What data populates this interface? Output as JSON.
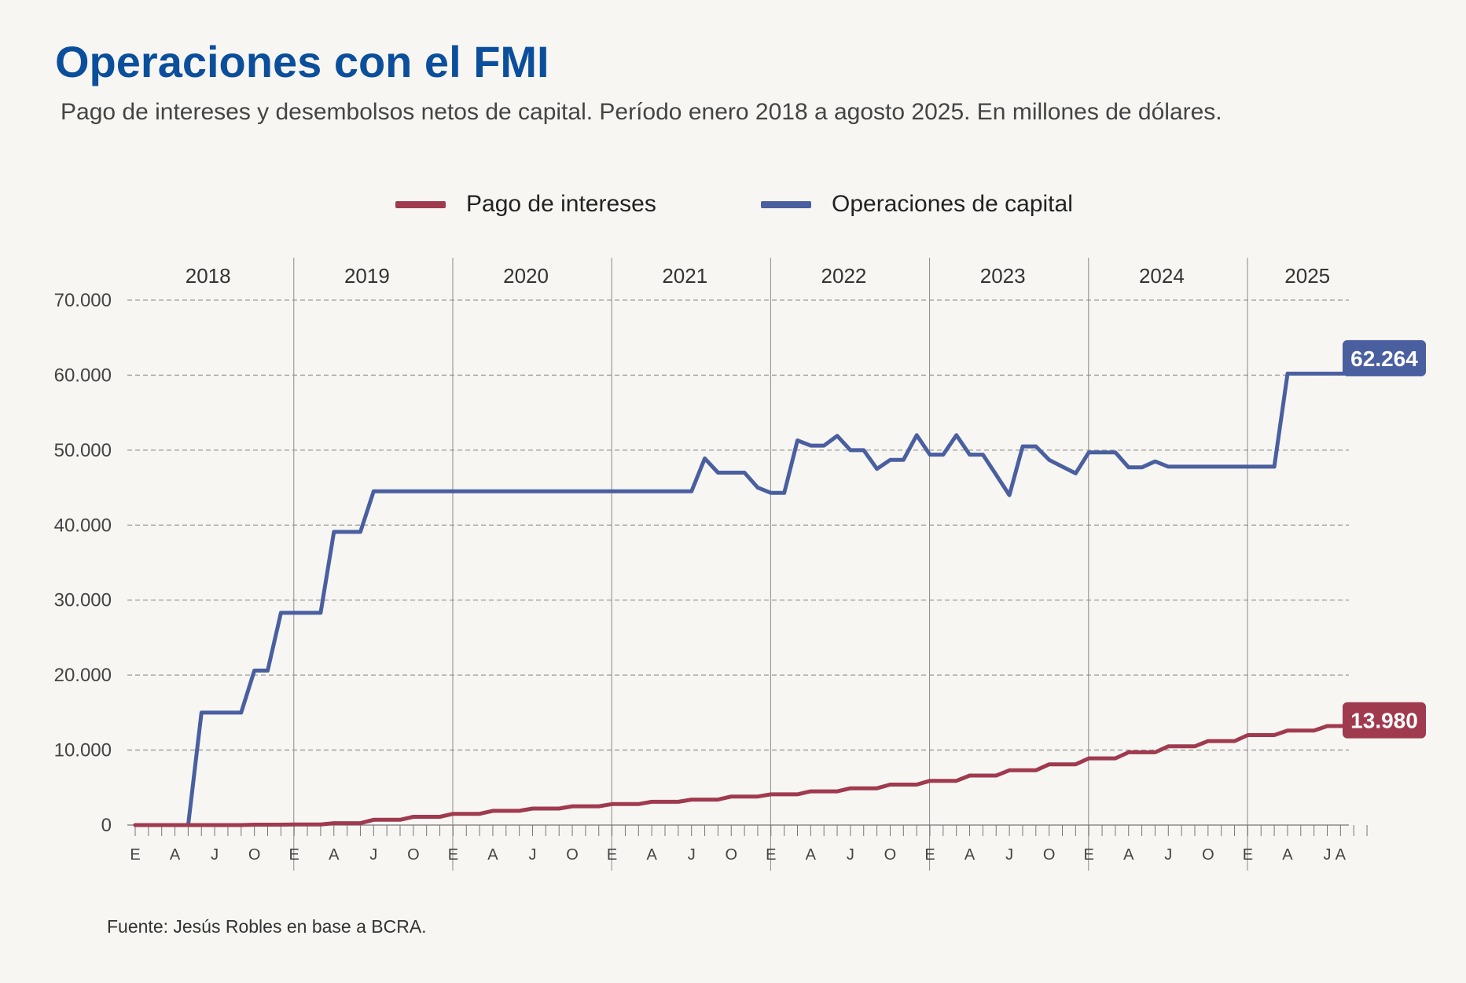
{
  "title": "Operaciones con el FMI",
  "subtitle": "Pago de intereses y desembolsos netos de capital. Período enero 2018 a agosto 2025. En millones de dólares.",
  "source": "Fuente: Jesús Robles en base a BCRA.",
  "legend": [
    {
      "label": "Pago de intereses",
      "color": "#a03a4e"
    },
    {
      "label": "Operaciones de capital",
      "color": "#4a5fa0"
    }
  ],
  "colors": {
    "background": "#f7f6f2",
    "title": "#0b4f9c",
    "intereses": "#a03a4e",
    "capital": "#4a5fa0",
    "grid": "#9a9a9a"
  },
  "chart_data": {
    "type": "line",
    "title": "Operaciones con el FMI",
    "xlabel": "",
    "ylabel": "",
    "ylim": [
      0,
      70000
    ],
    "grid": true,
    "legend_position": "top-center",
    "y_ticks": [
      "0",
      "10.000",
      "20.000",
      "30.000",
      "40.000",
      "50.000",
      "60.000",
      "70.000"
    ],
    "y_tick_values": [
      0,
      10000,
      20000,
      30000,
      40000,
      50000,
      60000,
      70000
    ],
    "years": [
      "2018",
      "2019",
      "2020",
      "2021",
      "2022",
      "2023",
      "2024",
      "2025"
    ],
    "month_labels": [
      "E",
      "A",
      "J",
      "O"
    ],
    "month_labels_2025": [
      "E",
      "A",
      "JA"
    ],
    "x_start": "2018-01",
    "x_end": "2025-08",
    "series": [
      {
        "name": "Pago de intereses",
        "end_label": "13.980",
        "values": [
          0,
          0,
          0,
          0,
          0,
          0,
          0,
          0,
          0,
          50,
          50,
          50,
          80,
          80,
          80,
          250,
          250,
          250,
          700,
          700,
          700,
          1100,
          1100,
          1100,
          1500,
          1500,
          1500,
          1900,
          1900,
          1900,
          2200,
          2200,
          2200,
          2500,
          2500,
          2500,
          2800,
          2800,
          2800,
          3100,
          3100,
          3100,
          3400,
          3400,
          3400,
          3800,
          3800,
          3800,
          4100,
          4100,
          4100,
          4500,
          4500,
          4500,
          4900,
          4900,
          4900,
          5400,
          5400,
          5400,
          5900,
          5900,
          5900,
          6600,
          6600,
          6600,
          7300,
          7300,
          7300,
          8100,
          8100,
          8100,
          8900,
          8900,
          8900,
          9700,
          9700,
          9700,
          10500,
          10500,
          10500,
          11200,
          11200,
          11200,
          12000,
          12000,
          12000,
          12600,
          12600,
          12600,
          13200,
          13200,
          13200,
          13980
        ]
      },
      {
        "name": "Operaciones de capital",
        "end_label": "62.264",
        "values": [
          0,
          0,
          0,
          0,
          0,
          15000,
          15000,
          15000,
          15000,
          20600,
          20600,
          28300,
          28300,
          28300,
          28300,
          39100,
          39100,
          39100,
          44500,
          44500,
          44500,
          44500,
          44500,
          44500,
          44500,
          44500,
          44500,
          44500,
          44500,
          44500,
          44500,
          44500,
          44500,
          44500,
          44500,
          44500,
          44500,
          44500,
          44500,
          44500,
          44500,
          44500,
          44500,
          48900,
          47000,
          47000,
          47000,
          45000,
          44300,
          44300,
          51300,
          50600,
          50600,
          51900,
          50000,
          50000,
          47500,
          48700,
          48700,
          52000,
          49400,
          49400,
          52000,
          49400,
          49400,
          46700,
          44000,
          50500,
          50500,
          48700,
          47800,
          46900,
          49700,
          49700,
          49700,
          47700,
          47700,
          48500,
          47800,
          47800,
          47800,
          47800,
          47800,
          47800,
          47800,
          47800,
          47800,
          60200,
          60200,
          60200,
          60200,
          60200,
          60200,
          62264
        ]
      }
    ]
  }
}
